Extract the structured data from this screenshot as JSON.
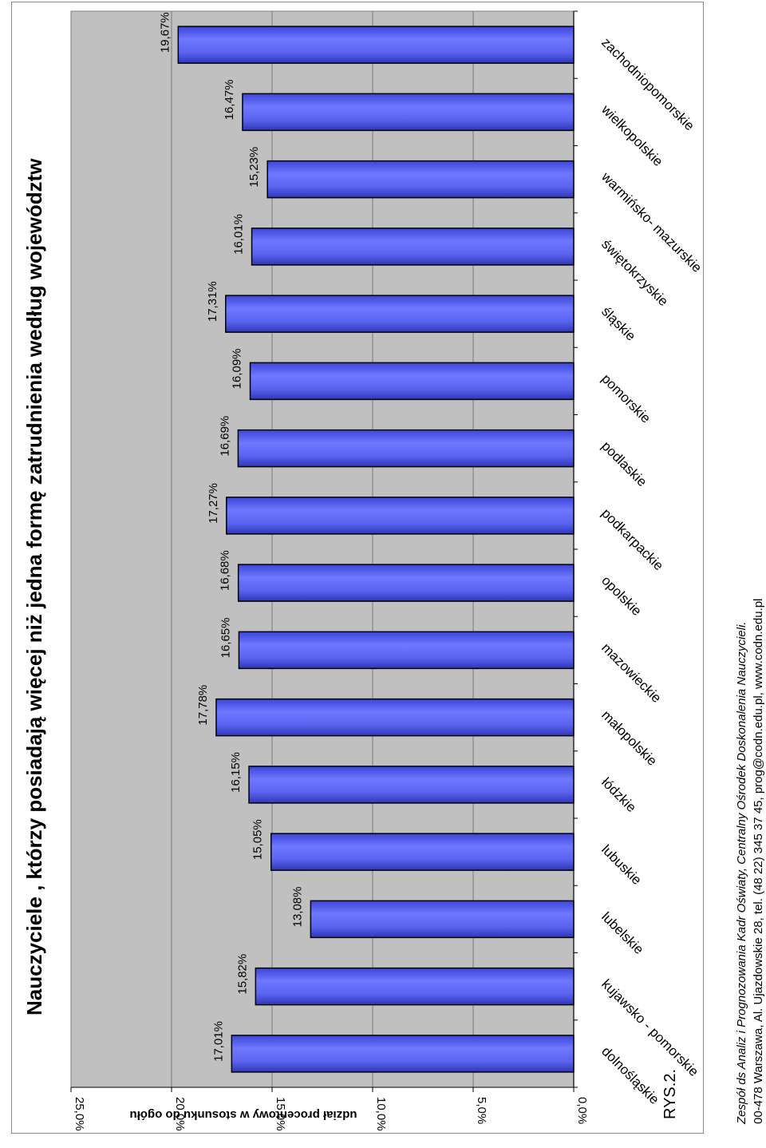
{
  "chart_data": {
    "type": "bar",
    "title": "Nauczyciele , którzy posiadają więcej niż jedna formę zatrudnienia według województw",
    "ylabel": "udział procentowy  w stosunku  do  ogółu",
    "xlabel": "",
    "categories": [
      "dolnośląskie",
      "kujawsko - pomorskie",
      "lubelskie",
      "lubuskie",
      "łódzkie",
      "małopolskie",
      "mazowieckie",
      "opolskie",
      "podkarpackie",
      "podlaskie",
      "pomorskie",
      "śląskie",
      "świętokrzyskie",
      "warmińsko- mazurskie",
      "wielkopolskie",
      "zachodniopomorskie"
    ],
    "values": [
      17.01,
      15.82,
      13.08,
      15.05,
      16.15,
      17.78,
      16.65,
      16.68,
      17.27,
      16.69,
      16.09,
      17.31,
      16.01,
      15.23,
      16.47,
      19.67
    ],
    "value_labels": [
      "17,01%",
      "15,82%",
      "13,08%",
      "15,05%",
      "16,15%",
      "17,78%",
      "16,65%",
      "16,68%",
      "17,27%",
      "16,69%",
      "16,09%",
      "17,31%",
      "16,01%",
      "15,23%",
      "16,47%",
      "19,67%"
    ],
    "ylim": [
      0,
      25
    ],
    "yticks": [
      0,
      5,
      10,
      15,
      20,
      25
    ],
    "ytick_labels": [
      "0,0%",
      "5,0%",
      "10,0%",
      "15,0%",
      "20,0%",
      "25,0%"
    ],
    "grid": true,
    "bar_color": "#5a64f0",
    "plot_background": "#c0c0c0",
    "orientation": "rotated 90° clockwise on page"
  },
  "figure_label": "RYS.2.",
  "footer": {
    "line1": "Zespół ds Analiz i Prognozowania Kadr Oświaty, Centralny Ośrodek Doskonalenia Nauczycieli.",
    "line2": "00-478 Warszawa, Al. Ujazdowskie 28, tel. (48 22) 345 37 45, prog@codn.edu.pl, www.codn.edu.pl"
  }
}
